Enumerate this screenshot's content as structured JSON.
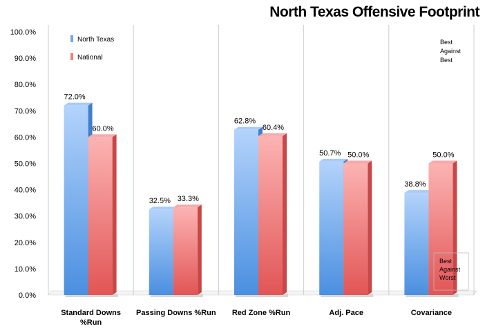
{
  "chart_data": {
    "type": "bar",
    "title": "North Texas Offensive Footprint",
    "categories": [
      "Standard Downs %Run",
      "Passing Downs %Run",
      "Red Zone %Run",
      "Adj. Pace",
      "Covariance"
    ],
    "category_lines": [
      [
        "Standard Downs",
        "%Run"
      ],
      [
        "Passing Downs %Run"
      ],
      [
        "Red Zone %Run"
      ],
      [
        "Adj. Pace"
      ],
      [
        "Covariance"
      ]
    ],
    "series": [
      {
        "name": "North Texas",
        "values": [
          72.0,
          32.5,
          62.8,
          50.7,
          38.8
        ],
        "labels": [
          "72.0%",
          "32.5%",
          "62.8%",
          "50.7%",
          "38.8%"
        ],
        "color": "#6fa8ee"
      },
      {
        "name": "National",
        "values": [
          60.0,
          33.3,
          60.4,
          50.0,
          50.0
        ],
        "labels": [
          "60.0%",
          "33.3%",
          "60.4%",
          "50.0%",
          "50.0%"
        ],
        "color": "#ee7f7f"
      }
    ],
    "yticks": [
      "0.0%",
      "10.0%",
      "20.0%",
      "30.0%",
      "40.0%",
      "50.0%",
      "60.0%",
      "70.0%",
      "80.0%",
      "90.0%",
      "100.0%"
    ],
    "ylim": [
      0,
      100
    ],
    "grid": false,
    "legend_position": "top-left",
    "annotations": {
      "top": [
        "Best",
        "Against",
        "Best"
      ],
      "bottom": [
        "Best",
        "Against",
        "Worst"
      ]
    }
  }
}
